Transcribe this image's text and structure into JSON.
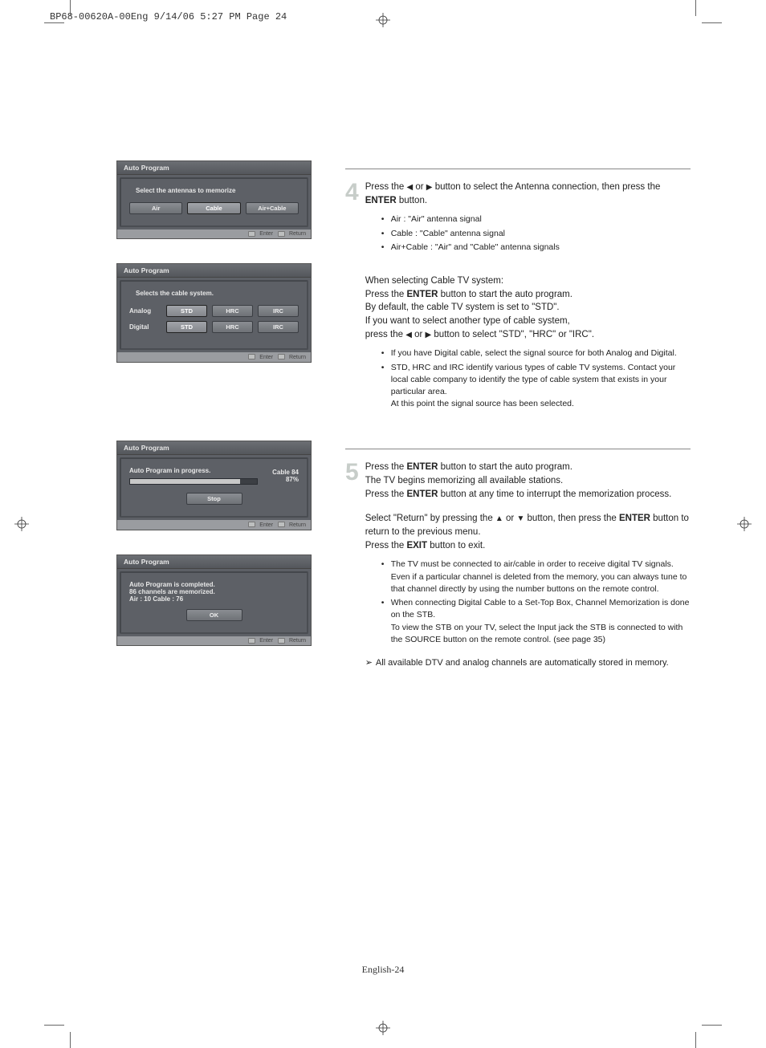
{
  "header": "BP68-00620A-00Eng  9/14/06  5:27 PM  Page 24",
  "page_number": "English-24",
  "dialog_common": {
    "title": "Auto Program",
    "footer_enter": "Enter",
    "footer_return": "Return"
  },
  "dialog1": {
    "subtitle": "Select the antennas to memorize",
    "buttons": [
      "Air",
      "Cable",
      "Air+Cable"
    ]
  },
  "dialog2": {
    "subtitle": "Selects the cable system.",
    "rows": [
      {
        "label": "Analog",
        "options": [
          "STD",
          "HRC",
          "IRC"
        ]
      },
      {
        "label": "Digital",
        "options": [
          "STD",
          "HRC",
          "IRC"
        ]
      }
    ]
  },
  "dialog3": {
    "subtitle": "Auto Program in progress.",
    "cable": "Cable 84",
    "percent": "87%",
    "progress_pct": 87,
    "stop": "Stop"
  },
  "dialog4": {
    "line1": "Auto Program is completed.",
    "line2": "86 channels are memorized.",
    "line3": "Air : 10    Cable : 76",
    "ok": "OK"
  },
  "step4": {
    "num": "4",
    "text1a": "Press the ",
    "text1b": " or ",
    "text1c": " button to select the Antenna connection, then press the ",
    "enter": "ENTER",
    "text1d": " button.",
    "bullets1": [
      "Air : \"Air\" antenna signal",
      "Cable : \"Cable\" antenna signal",
      "Air+Cable : \"Air\" and \"Cable\" antenna signals"
    ],
    "cable_title": "When selecting Cable TV system:",
    "press_a": "Press the ",
    "press_b": " button to start the auto program.",
    "default_line": "By default, the cable TV system is set to \"STD\".",
    "want_line": "If you want to select another type of cable system,",
    "press2a": "press the ",
    "press2b": " or ",
    "press2c": " button to select  \"STD\", \"HRC\" or \"IRC\".",
    "bullets2": [
      "If you have Digital cable, select the signal source for both Analog and Digital.",
      "STD, HRC and IRC identify various types of cable TV systems. Contact your local cable company to identify the type of cable system that exists in your particular area.\nAt this point the signal source has been selected."
    ]
  },
  "step5": {
    "num": "5",
    "l1a": "Press the ",
    "enter": "ENTER",
    "l1b": " button to start the auto program.",
    "l2": "The TV begins memorizing all available stations.",
    "l3a": "Press the ",
    "l3b": " button at any time to interrupt the memorization process.",
    "l4a": "Select \"Return\" by pressing the ",
    "l4b": " or ",
    "l4c": " button, then press the ",
    "l4d": " button to return to the previous menu.",
    "l5a": "Press the ",
    "exit": "EXIT",
    "l5b": " button to exit.",
    "bullets": [
      "The TV must be connected to air/cable in order to receive digital TV signals. Even if a particular channel is deleted from the memory, you can always tune to that channel directly by using the number buttons on the remote control.",
      "When connecting Digital Cable to a Set-Top Box, Channel Memorization is done on the STB.\nTo view the STB on your TV, select the Input jack the STB is connected to with the SOURCE button on the remote control. (see page 35)"
    ],
    "source": "SOURCE",
    "final": "All available DTV and analog channels are automatically stored in memory."
  }
}
